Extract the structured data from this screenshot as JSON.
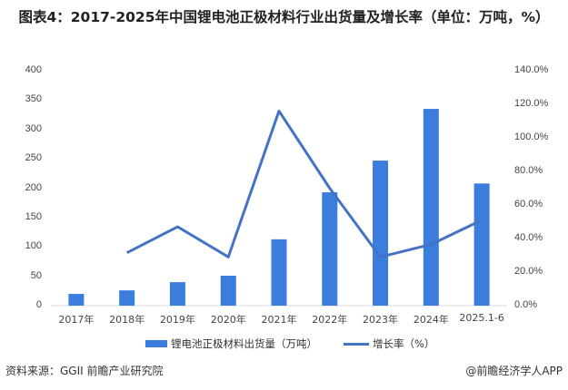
{
  "title": "图表4：2017-2025年中国锂电池正极材料行业出货量及增长率（单位：万吨，%）",
  "footer": {
    "source": "资料来源：GGII  前瞻产业研究院",
    "credit": "@前瞻经济学人APP"
  },
  "legend": {
    "bar": "锂电池正极材料出货量（万吨）",
    "line": "增长率（%）"
  },
  "colors": {
    "bar": "#3B7DDD",
    "line": "#4472C4",
    "axis": "#d9d9d9"
  },
  "chart_data": {
    "type": "bar+line",
    "title": "图表4：2017-2025年中国锂电池正极材料行业出货量及增长率（单位：万吨，%）",
    "categories": [
      "2017年",
      "2018年",
      "2019年",
      "2020年",
      "2021年",
      "2022年",
      "2023年",
      "2024年",
      "2025.1-6"
    ],
    "series": [
      {
        "name": "锂电池正极材料出货量（万吨）",
        "type": "bar",
        "axis": "left",
        "values": [
          20,
          26,
          40,
          51,
          113,
          193,
          247,
          335,
          208
        ]
      },
      {
        "name": "增长率（%）",
        "type": "line",
        "axis": "right",
        "values": [
          null,
          31.5,
          47,
          29,
          116,
          70,
          29,
          36.5,
          51
        ]
      }
    ],
    "y_left": {
      "range": [
        0,
        400
      ],
      "ticks": [
        "0",
        "50",
        "100",
        "150",
        "200",
        "250",
        "300",
        "350",
        "400"
      ]
    },
    "y_right": {
      "range": [
        0,
        140
      ],
      "ticks": [
        "0.0%",
        "20.0%",
        "40.0%",
        "60.0%",
        "80.0%",
        "100.0%",
        "120.0%",
        "140.0%"
      ]
    },
    "grid": false,
    "legend_position": "bottom"
  }
}
